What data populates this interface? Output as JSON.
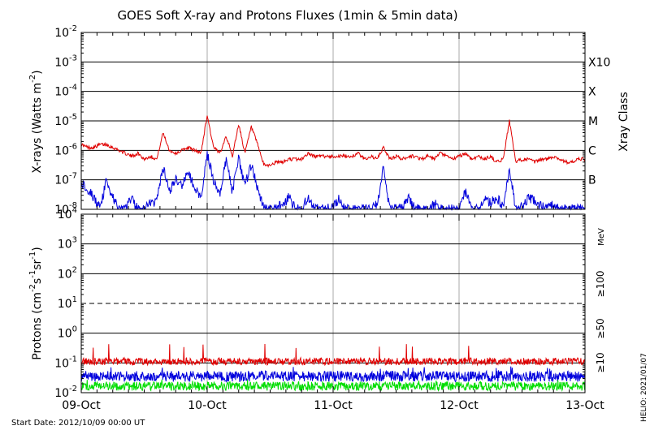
{
  "title": "GOES Soft X-ray and Protons Fluxes   (1min & 5min data)",
  "footer": {
    "start_date": "Start Date: 2012/10/09 00:00 UT",
    "credit": "HELIO: 2021/01/07"
  },
  "colors": {
    "red": "#e00000",
    "blue": "#0000dd",
    "green": "#00dd00"
  },
  "chart_data": [
    {
      "type": "line",
      "panel": "xray",
      "ylabel_main": "X-rays (Watts m",
      "ylabel_exp": "-2",
      "ylabel_end": ")",
      "y_scale": "log",
      "ylim_exp": [
        -8,
        -2
      ],
      "y_tick_exponents": [
        -8,
        -7,
        -6,
        -5,
        -4,
        -3,
        -2
      ],
      "right_axis_label": "Xray Class",
      "class_labels": [
        {
          "label": "B",
          "exp": -7
        },
        {
          "label": "C",
          "exp": -6
        },
        {
          "label": "M",
          "exp": -5
        },
        {
          "label": "X",
          "exp": -4
        },
        {
          "label": "X10",
          "exp": -3
        }
      ],
      "grid": true,
      "series": [
        {
          "color": "red",
          "x_day_offsets": [
            0.0,
            0.05,
            0.1,
            0.15,
            0.2,
            0.25,
            0.3,
            0.35,
            0.4,
            0.45,
            0.5,
            0.55,
            0.6,
            0.65,
            0.7,
            0.75,
            0.8,
            0.85,
            0.9,
            0.95,
            1.0,
            1.05,
            1.1,
            1.15,
            1.2,
            1.25,
            1.3,
            1.35,
            1.4,
            1.45,
            1.5,
            1.55,
            1.6,
            1.65,
            1.7,
            1.75,
            1.8,
            1.85,
            1.9,
            1.95,
            2.0,
            2.05,
            2.1,
            2.15,
            2.2,
            2.25,
            2.3,
            2.35,
            2.4,
            2.45,
            2.5,
            2.55,
            2.6,
            2.65,
            2.7,
            2.75,
            2.8,
            2.85,
            2.9,
            2.95,
            3.0,
            3.05,
            3.1,
            3.15,
            3.2,
            3.25,
            3.3,
            3.35,
            3.4,
            3.45,
            3.5,
            3.55,
            3.6,
            3.65,
            3.7,
            3.75,
            3.8,
            3.85,
            3.9,
            3.95,
            4.0
          ],
          "y_log10": [
            -5.8,
            -5.9,
            -5.9,
            -5.8,
            -5.8,
            -5.9,
            -6.0,
            -6.1,
            -6.2,
            -6.1,
            -6.3,
            -6.2,
            -6.3,
            -5.4,
            -6.0,
            -6.1,
            -6.0,
            -5.9,
            -6.0,
            -6.1,
            -4.8,
            -5.9,
            -6.1,
            -5.5,
            -6.2,
            -5.1,
            -6.1,
            -5.2,
            -5.8,
            -6.5,
            -6.5,
            -6.4,
            -6.4,
            -6.3,
            -6.3,
            -6.3,
            -6.1,
            -6.2,
            -6.2,
            -6.2,
            -6.2,
            -6.2,
            -6.2,
            -6.2,
            -6.1,
            -6.3,
            -6.2,
            -6.3,
            -5.9,
            -6.3,
            -6.2,
            -6.3,
            -6.2,
            -6.2,
            -6.3,
            -6.2,
            -6.3,
            -6.1,
            -6.2,
            -6.3,
            -6.2,
            -6.1,
            -6.3,
            -6.2,
            -6.3,
            -6.2,
            -6.4,
            -6.3,
            -5.0,
            -6.4,
            -6.3,
            -6.3,
            -6.4,
            -6.3,
            -6.3,
            -6.2,
            -6.3,
            -6.4,
            -6.4,
            -6.3,
            -6.3
          ]
        },
        {
          "color": "blue",
          "x_day_offsets": [
            0.0,
            0.05,
            0.1,
            0.15,
            0.2,
            0.25,
            0.3,
            0.35,
            0.4,
            0.45,
            0.5,
            0.55,
            0.6,
            0.65,
            0.7,
            0.75,
            0.8,
            0.85,
            0.9,
            0.95,
            1.0,
            1.05,
            1.1,
            1.15,
            1.2,
            1.25,
            1.3,
            1.35,
            1.4,
            1.45,
            1.5,
            1.55,
            1.6,
            1.65,
            1.7,
            1.75,
            1.8,
            1.85,
            1.9,
            1.95,
            2.0,
            2.05,
            2.1,
            2.15,
            2.2,
            2.25,
            2.3,
            2.35,
            2.4,
            2.45,
            2.5,
            2.55,
            2.6,
            2.65,
            2.7,
            2.75,
            2.8,
            2.85,
            2.9,
            2.95,
            3.0,
            3.05,
            3.1,
            3.15,
            3.2,
            3.25,
            3.3,
            3.35,
            3.4,
            3.45,
            3.5,
            3.55,
            3.6,
            3.65,
            3.7,
            3.75,
            3.8,
            3.85,
            3.9,
            3.95,
            4.0
          ],
          "y_log10": [
            -7.1,
            -7.3,
            -7.6,
            -8.0,
            -7.0,
            -7.6,
            -8.0,
            -8.0,
            -7.6,
            -8.0,
            -8.0,
            -7.8,
            -7.7,
            -6.6,
            -7.4,
            -7.0,
            -7.2,
            -6.7,
            -7.3,
            -7.6,
            -6.1,
            -7.0,
            -7.5,
            -6.3,
            -7.4,
            -6.3,
            -7.2,
            -6.5,
            -7.3,
            -8.0,
            -8.0,
            -8.0,
            -7.8,
            -7.6,
            -8.0,
            -8.0,
            -7.6,
            -8.0,
            -8.0,
            -8.0,
            -7.9,
            -7.6,
            -8.0,
            -8.0,
            -8.0,
            -8.0,
            -8.0,
            -7.8,
            -6.6,
            -8.0,
            -7.9,
            -8.0,
            -7.6,
            -8.0,
            -8.0,
            -8.0,
            -7.8,
            -8.0,
            -8.0,
            -8.0,
            -8.0,
            -7.4,
            -8.0,
            -8.0,
            -7.6,
            -7.8,
            -7.6,
            -7.9,
            -6.6,
            -8.0,
            -7.9,
            -7.6,
            -7.7,
            -7.9,
            -8.0,
            -7.8,
            -8.0,
            -8.0,
            -8.0,
            -8.0,
            -8.0
          ]
        }
      ]
    },
    {
      "type": "line",
      "panel": "protons",
      "ylabel_main": "Protons (cm",
      "ylabel_sup1": "-2",
      "ylabel_mid1": "s",
      "ylabel_sup2": "-1",
      "ylabel_mid2": "sr",
      "ylabel_sup3": "-1",
      "ylabel_end": ")",
      "y_scale": "log",
      "ylim_exp": [
        -2,
        4
      ],
      "y_tick_labels": [
        {
          "base": "10",
          "exp": "-2",
          "v": -2
        },
        {
          "base": "10",
          "exp": "-1",
          "v": -1
        },
        {
          "base": "10",
          "exp": "0",
          "v": 0
        },
        {
          "base": "10",
          "exp": "1",
          "v": 1
        },
        {
          "base": "10",
          "exp": "2",
          "v": 2
        },
        {
          "base": "10",
          "exp": "3",
          "v": 3
        },
        {
          "base": "10",
          "exp": "4",
          "v": 4
        }
      ],
      "threshold_exp": 1,
      "grid": true,
      "right_legend": {
        "unit": "MeV",
        "items": [
          {
            "label": "≥100",
            "color": "green"
          },
          {
            "label": "≥50",
            "color": "blue"
          },
          {
            "label": "≥10",
            "color": "red"
          }
        ]
      },
      "series": [
        {
          "name": "≥10",
          "color": "red",
          "typical_log10": -0.95,
          "spread": 0.12,
          "peak_log10": -0.35
        },
        {
          "name": "≥50",
          "color": "blue",
          "typical_log10": -1.45,
          "spread": 0.18,
          "peak_log10": -1.1
        },
        {
          "name": "≥100",
          "color": "green",
          "typical_log10": -1.78,
          "spread": 0.15,
          "peak_log10": -1.55
        }
      ]
    }
  ],
  "x_axis": {
    "tick_labels": [
      "09-Oct",
      "10-Oct",
      "11-Oct",
      "12-Oct",
      "13-Oct"
    ],
    "xlim_days": [
      0,
      4
    ]
  }
}
